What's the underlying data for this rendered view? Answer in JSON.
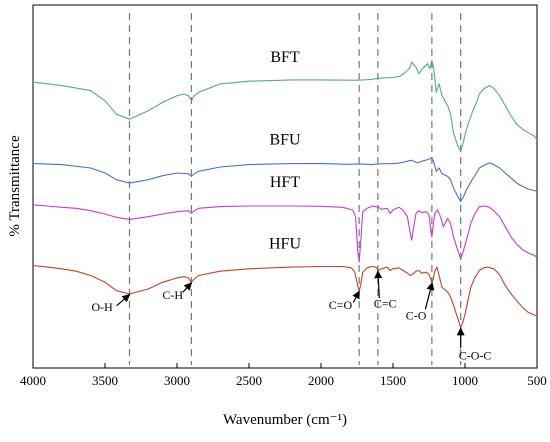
{
  "chart_data": {
    "type": "line",
    "title": "",
    "xlabel": "Wavenumber (cm⁻¹)",
    "ylabel": "% Transmittance",
    "xlim": [
      4000,
      500
    ],
    "x_reversed": true,
    "y_ticks_shown": false,
    "grid": false,
    "legend": "none (series names printed beside each curve)",
    "xticks": [
      4000,
      3500,
      3000,
      2500,
      2000,
      1500,
      1000,
      500
    ],
    "reference_lines": [
      3330,
      2900,
      1735,
      1605,
      1230,
      1030
    ],
    "series": [
      {
        "name": "BFT",
        "color": "#5aaa7c",
        "points": [
          [
            4000,
            0.8
          ],
          [
            3800,
            0.79
          ],
          [
            3600,
            0.775
          ],
          [
            3500,
            0.745
          ],
          [
            3420,
            0.705
          ],
          [
            3330,
            0.69
          ],
          [
            3200,
            0.715
          ],
          [
            3100,
            0.74
          ],
          [
            3000,
            0.76
          ],
          [
            2950,
            0.765
          ],
          [
            2920,
            0.76
          ],
          [
            2900,
            0.745
          ],
          [
            2880,
            0.76
          ],
          [
            2850,
            0.77
          ],
          [
            2700,
            0.795
          ],
          [
            2500,
            0.803
          ],
          [
            2200,
            0.807
          ],
          [
            2000,
            0.807
          ],
          [
            1800,
            0.806
          ],
          [
            1740,
            0.806
          ],
          [
            1650,
            0.808
          ],
          [
            1600,
            0.812
          ],
          [
            1500,
            0.814
          ],
          [
            1450,
            0.818
          ],
          [
            1400,
            0.835
          ],
          [
            1380,
            0.845
          ],
          [
            1370,
            0.86
          ],
          [
            1340,
            0.845
          ],
          [
            1320,
            0.825
          ],
          [
            1300,
            0.838
          ],
          [
            1260,
            0.855
          ],
          [
            1245,
            0.84
          ],
          [
            1230,
            0.865
          ],
          [
            1215,
            0.835
          ],
          [
            1200,
            0.77
          ],
          [
            1180,
            0.795
          ],
          [
            1160,
            0.76
          ],
          [
            1120,
            0.73
          ],
          [
            1100,
            0.705
          ],
          [
            1080,
            0.65
          ],
          [
            1050,
            0.61
          ],
          [
            1030,
            0.595
          ],
          [
            1010,
            0.625
          ],
          [
            990,
            0.66
          ],
          [
            950,
            0.71
          ],
          [
            920,
            0.74
          ],
          [
            900,
            0.765
          ],
          [
            870,
            0.78
          ],
          [
            830,
            0.79
          ],
          [
            800,
            0.782
          ],
          [
            760,
            0.76
          ],
          [
            720,
            0.73
          ],
          [
            680,
            0.7
          ],
          [
            640,
            0.675
          ],
          [
            600,
            0.66
          ],
          [
            560,
            0.65
          ],
          [
            520,
            0.64
          ],
          [
            500,
            0.63
          ]
        ]
      },
      {
        "name": "BFU",
        "color": "#4a72c9",
        "points": [
          [
            4000,
            0.558
          ],
          [
            3800,
            0.555
          ],
          [
            3600,
            0.545
          ],
          [
            3500,
            0.53
          ],
          [
            3420,
            0.51
          ],
          [
            3330,
            0.5
          ],
          [
            3200,
            0.51
          ],
          [
            3100,
            0.522
          ],
          [
            3000,
            0.53
          ],
          [
            2920,
            0.528
          ],
          [
            2900,
            0.52
          ],
          [
            2880,
            0.528
          ],
          [
            2850,
            0.535
          ],
          [
            2700,
            0.548
          ],
          [
            2500,
            0.555
          ],
          [
            2200,
            0.558
          ],
          [
            2000,
            0.558
          ],
          [
            1800,
            0.556
          ],
          [
            1740,
            0.557
          ],
          [
            1650,
            0.555
          ],
          [
            1600,
            0.557
          ],
          [
            1500,
            0.558
          ],
          [
            1450,
            0.56
          ],
          [
            1400,
            0.565
          ],
          [
            1370,
            0.568
          ],
          [
            1330,
            0.56
          ],
          [
            1300,
            0.565
          ],
          [
            1260,
            0.57
          ],
          [
            1230,
            0.575
          ],
          [
            1215,
            0.56
          ],
          [
            1200,
            0.535
          ],
          [
            1180,
            0.545
          ],
          [
            1160,
            0.528
          ],
          [
            1120,
            0.52
          ],
          [
            1100,
            0.51
          ],
          [
            1080,
            0.485
          ],
          [
            1050,
            0.46
          ],
          [
            1030,
            0.445
          ],
          [
            1010,
            0.46
          ],
          [
            990,
            0.48
          ],
          [
            950,
            0.51
          ],
          [
            920,
            0.53
          ],
          [
            900,
            0.545
          ],
          [
            860,
            0.555
          ],
          [
            830,
            0.56
          ],
          [
            800,
            0.555
          ],
          [
            760,
            0.545
          ],
          [
            720,
            0.53
          ],
          [
            680,
            0.515
          ],
          [
            640,
            0.5
          ],
          [
            600,
            0.49
          ],
          [
            560,
            0.482
          ],
          [
            520,
            0.478
          ],
          [
            500,
            0.475
          ]
        ]
      },
      {
        "name": "HFT",
        "color": "#c23fd0",
        "points": [
          [
            4000,
            0.435
          ],
          [
            3900,
            0.432
          ],
          [
            3800,
            0.428
          ],
          [
            3700,
            0.425
          ],
          [
            3600,
            0.418
          ],
          [
            3500,
            0.408
          ],
          [
            3420,
            0.398
          ],
          [
            3330,
            0.392
          ],
          [
            3200,
            0.4
          ],
          [
            3100,
            0.408
          ],
          [
            3000,
            0.415
          ],
          [
            2920,
            0.418
          ],
          [
            2900,
            0.41
          ],
          [
            2880,
            0.418
          ],
          [
            2850,
            0.425
          ],
          [
            2700,
            0.43
          ],
          [
            2500,
            0.432
          ],
          [
            2200,
            0.432
          ],
          [
            2000,
            0.431
          ],
          [
            1850,
            0.428
          ],
          [
            1780,
            0.42
          ],
          [
            1760,
            0.4
          ],
          [
            1745,
            0.3
          ],
          [
            1735,
            0.265
          ],
          [
            1725,
            0.32
          ],
          [
            1710,
            0.415
          ],
          [
            1680,
            0.425
          ],
          [
            1640,
            0.432
          ],
          [
            1600,
            0.428
          ],
          [
            1580,
            0.422
          ],
          [
            1540,
            0.425
          ],
          [
            1520,
            0.41
          ],
          [
            1500,
            0.42
          ],
          [
            1460,
            0.428
          ],
          [
            1430,
            0.42
          ],
          [
            1400,
            0.4
          ],
          [
            1380,
            0.35
          ],
          [
            1370,
            0.33
          ],
          [
            1360,
            0.36
          ],
          [
            1340,
            0.41
          ],
          [
            1320,
            0.418
          ],
          [
            1300,
            0.412
          ],
          [
            1270,
            0.415
          ],
          [
            1250,
            0.405
          ],
          [
            1235,
            0.35
          ],
          [
            1230,
            0.34
          ],
          [
            1225,
            0.36
          ],
          [
            1210,
            0.41
          ],
          [
            1190,
            0.42
          ],
          [
            1170,
            0.4
          ],
          [
            1150,
            0.37
          ],
          [
            1120,
            0.395
          ],
          [
            1100,
            0.38
          ],
          [
            1080,
            0.34
          ],
          [
            1050,
            0.3
          ],
          [
            1030,
            0.275
          ],
          [
            1010,
            0.3
          ],
          [
            990,
            0.33
          ],
          [
            960,
            0.38
          ],
          [
            930,
            0.41
          ],
          [
            900,
            0.43
          ],
          [
            860,
            0.432
          ],
          [
            830,
            0.428
          ],
          [
            800,
            0.418
          ],
          [
            760,
            0.4
          ],
          [
            720,
            0.37
          ],
          [
            680,
            0.34
          ],
          [
            640,
            0.318
          ],
          [
            600,
            0.302
          ],
          [
            560,
            0.292
          ],
          [
            520,
            0.285
          ],
          [
            500,
            0.28
          ]
        ]
      },
      {
        "name": "HFU",
        "color": "#c0432b",
        "points": [
          [
            4000,
            0.255
          ],
          [
            3900,
            0.25
          ],
          [
            3800,
            0.245
          ],
          [
            3700,
            0.238
          ],
          [
            3600,
            0.225
          ],
          [
            3500,
            0.205
          ],
          [
            3420,
            0.18
          ],
          [
            3330,
            0.17
          ],
          [
            3200,
            0.185
          ],
          [
            3100,
            0.205
          ],
          [
            3000,
            0.218
          ],
          [
            2950,
            0.222
          ],
          [
            2920,
            0.218
          ],
          [
            2900,
            0.205
          ],
          [
            2880,
            0.215
          ],
          [
            2850,
            0.225
          ],
          [
            2700,
            0.238
          ],
          [
            2500,
            0.245
          ],
          [
            2200,
            0.25
          ],
          [
            2000,
            0.252
          ],
          [
            1850,
            0.252
          ],
          [
            1790,
            0.248
          ],
          [
            1765,
            0.235
          ],
          [
            1745,
            0.195
          ],
          [
            1735,
            0.18
          ],
          [
            1725,
            0.195
          ],
          [
            1710,
            0.235
          ],
          [
            1680,
            0.248
          ],
          [
            1650,
            0.252
          ],
          [
            1620,
            0.25
          ],
          [
            1600,
            0.24
          ],
          [
            1580,
            0.245
          ],
          [
            1540,
            0.25
          ],
          [
            1520,
            0.24
          ],
          [
            1500,
            0.245
          ],
          [
            1460,
            0.248
          ],
          [
            1430,
            0.24
          ],
          [
            1400,
            0.232
          ],
          [
            1380,
            0.225
          ],
          [
            1360,
            0.23
          ],
          [
            1340,
            0.238
          ],
          [
            1320,
            0.24
          ],
          [
            1300,
            0.232
          ],
          [
            1270,
            0.235
          ],
          [
            1250,
            0.228
          ],
          [
            1235,
            0.21
          ],
          [
            1230,
            0.205
          ],
          [
            1220,
            0.215
          ],
          [
            1210,
            0.238
          ],
          [
            1195,
            0.25
          ],
          [
            1180,
            0.225
          ],
          [
            1160,
            0.19
          ],
          [
            1130,
            0.18
          ],
          [
            1110,
            0.17
          ],
          [
            1090,
            0.15
          ],
          [
            1060,
            0.11
          ],
          [
            1040,
            0.085
          ],
          [
            1030,
            0.07
          ],
          [
            1015,
            0.085
          ],
          [
            1000,
            0.11
          ],
          [
            980,
            0.15
          ],
          [
            960,
            0.19
          ],
          [
            930,
            0.22
          ],
          [
            900,
            0.24
          ],
          [
            870,
            0.248
          ],
          [
            840,
            0.25
          ],
          [
            800,
            0.245
          ],
          [
            760,
            0.228
          ],
          [
            720,
            0.195
          ],
          [
            680,
            0.17
          ],
          [
            640,
            0.15
          ],
          [
            600,
            0.13
          ],
          [
            560,
            0.115
          ],
          [
            530,
            0.11
          ],
          [
            500,
            0.105
          ]
        ]
      }
    ],
    "series_labels": [
      {
        "text": "BFT",
        "x": 2250,
        "y": 0.86
      },
      {
        "text": "BFU",
        "x": 2250,
        "y": 0.615
      },
      {
        "text": "HFT",
        "x": 2250,
        "y": 0.488
      },
      {
        "text": "HFU",
        "x": 2250,
        "y": 0.305
      }
    ],
    "annotations": [
      {
        "text": "O-H",
        "tip": [
          3330,
          0.168
        ],
        "tail": [
          3420,
          0.135
        ],
        "label_at": [
          3520,
          0.12
        ]
      },
      {
        "text": "C-H",
        "tip": [
          2900,
          0.203
        ],
        "tail": [
          2960,
          0.175
        ],
        "label_at": [
          3030,
          0.155
        ]
      },
      {
        "text": "C=O",
        "tip": [
          1735,
          0.178
        ],
        "tail": [
          1775,
          0.145
        ],
        "label_at": [
          1865,
          0.125
        ]
      },
      {
        "text": "C=C",
        "tip": [
          1605,
          0.238
        ],
        "tail": [
          1595,
          0.158
        ],
        "label_at": [
          1555,
          0.13
        ]
      },
      {
        "text": "C-O",
        "tip": [
          1228,
          0.203
        ],
        "tail": [
          1275,
          0.125
        ],
        "label_at": [
          1340,
          0.095
        ]
      },
      {
        "text": "C-O-C",
        "tip": [
          1030,
          0.068
        ],
        "tail": [
          1030,
          0.01
        ],
        "label_at": [
          930,
          -0.025
        ]
      }
    ]
  }
}
